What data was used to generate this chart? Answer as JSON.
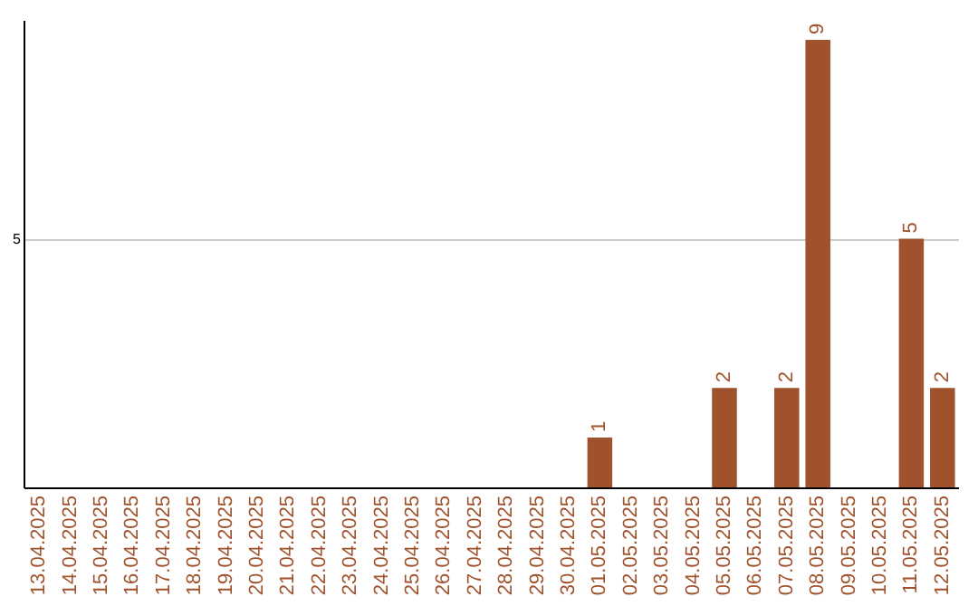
{
  "chart_data": {
    "type": "bar",
    "ylim": [
      0,
      9.4
    ],
    "yticks": [
      5
    ],
    "grid": "y",
    "categories": [
      "13.04.2025",
      "14.04.2025",
      "15.04.2025",
      "16.04.2025",
      "17.04.2025",
      "18.04.2025",
      "19.04.2025",
      "20.04.2025",
      "21.04.2025",
      "22.04.2025",
      "23.04.2025",
      "24.04.2025",
      "25.04.2025",
      "26.04.2025",
      "27.04.2025",
      "28.04.2025",
      "29.04.2025",
      "30.04.2025",
      "01.05.2025",
      "02.05.2025",
      "03.05.2025",
      "04.05.2025",
      "05.05.2025",
      "06.05.2025",
      "07.05.2025",
      "08.05.2025",
      "09.05.2025",
      "10.05.2025",
      "11.05.2025",
      "12.05.2025"
    ],
    "values": [
      null,
      null,
      null,
      null,
      null,
      null,
      null,
      null,
      null,
      null,
      null,
      null,
      null,
      null,
      null,
      null,
      null,
      null,
      1,
      null,
      null,
      null,
      2,
      null,
      2,
      9,
      null,
      null,
      5,
      2
    ],
    "data_labels": true,
    "color": "#a0522d"
  }
}
